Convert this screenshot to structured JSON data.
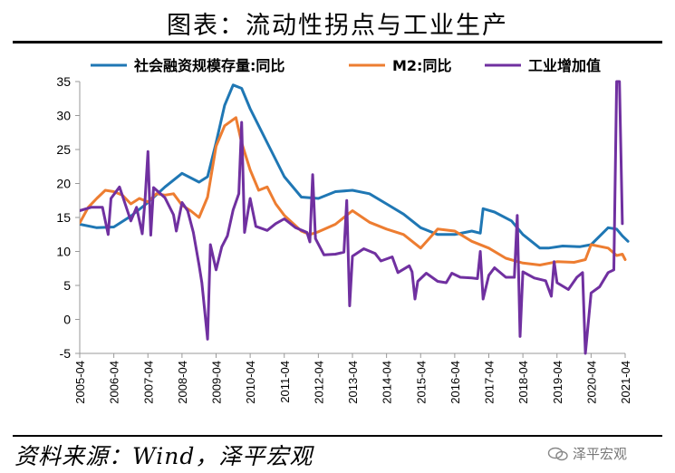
{
  "title": "图表：流动性拐点与工业生产",
  "source": "资料来源：Wind，泽平宏观",
  "watermark": "泽平宏观",
  "watermark_icon": "wechat-icon",
  "chart_data": {
    "type": "line",
    "title": "",
    "xlabel": "",
    "ylabel": "",
    "ylim": [
      -5,
      35
    ],
    "yticks": [
      -5,
      0,
      5,
      10,
      15,
      20,
      25,
      30,
      35
    ],
    "xlim": [
      "2005-04",
      "2021-04"
    ],
    "xticks": [
      "2005-04",
      "2006-04",
      "2007-04",
      "2008-04",
      "2009-04",
      "2010-04",
      "2011-04",
      "2012-04",
      "2013-04",
      "2014-04",
      "2015-04",
      "2016-04",
      "2017-04",
      "2018-04",
      "2019-04",
      "2020-04",
      "2021-04"
    ],
    "grid": false,
    "legend_position": "top",
    "series": [
      {
        "name": "社会融资规模存量:同比",
        "color": "#1f77b4",
        "points": [
          [
            "2005-04",
            14.0
          ],
          [
            "2005-10",
            13.5
          ],
          [
            "2006-04",
            13.6
          ],
          [
            "2006-10",
            15.2
          ],
          [
            "2007-04",
            17.2
          ],
          [
            "2007-10",
            19.5
          ],
          [
            "2008-04",
            21.5
          ],
          [
            "2008-10",
            20.2
          ],
          [
            "2009-01",
            21.0
          ],
          [
            "2009-04",
            26.0
          ],
          [
            "2009-07",
            31.5
          ],
          [
            "2009-10",
            34.5
          ],
          [
            "2010-01",
            34.0
          ],
          [
            "2010-04",
            31.0
          ],
          [
            "2010-10",
            26.0
          ],
          [
            "2011-04",
            21.0
          ],
          [
            "2011-10",
            18.0
          ],
          [
            "2012-04",
            17.8
          ],
          [
            "2012-10",
            18.8
          ],
          [
            "2013-04",
            19.0
          ],
          [
            "2013-10",
            18.5
          ],
          [
            "2014-04",
            17.0
          ],
          [
            "2014-10",
            15.5
          ],
          [
            "2015-04",
            13.5
          ],
          [
            "2015-10",
            12.5
          ],
          [
            "2016-04",
            12.5
          ],
          [
            "2016-10",
            13.0
          ],
          [
            "2017-01",
            12.7
          ],
          [
            "2017-02",
            16.3
          ],
          [
            "2017-06",
            15.8
          ],
          [
            "2017-12",
            14.5
          ],
          [
            "2018-04",
            12.5
          ],
          [
            "2018-10",
            10.5
          ],
          [
            "2019-01",
            10.5
          ],
          [
            "2019-06",
            10.8
          ],
          [
            "2019-12",
            10.7
          ],
          [
            "2020-04",
            11.0
          ],
          [
            "2020-10",
            13.5
          ],
          [
            "2021-01",
            13.3
          ],
          [
            "2021-03",
            12.3
          ],
          [
            "2021-05",
            11.5
          ]
        ]
      },
      {
        "name": "M2:同比",
        "color": "#ed7d31",
        "points": [
          [
            "2005-04",
            14.2
          ],
          [
            "2005-07",
            16.5
          ],
          [
            "2005-10",
            17.8
          ],
          [
            "2006-01",
            19.0
          ],
          [
            "2006-04",
            18.8
          ],
          [
            "2006-07",
            18.3
          ],
          [
            "2006-10",
            17.0
          ],
          [
            "2007-01",
            17.8
          ],
          [
            "2007-04",
            17.3
          ],
          [
            "2007-07",
            18.5
          ],
          [
            "2007-10",
            18.3
          ],
          [
            "2008-01",
            18.5
          ],
          [
            "2008-04",
            16.8
          ],
          [
            "2008-07",
            16.0
          ],
          [
            "2008-10",
            15.0
          ],
          [
            "2009-01",
            18.0
          ],
          [
            "2009-04",
            25.5
          ],
          [
            "2009-07",
            28.5
          ],
          [
            "2009-11",
            29.7
          ],
          [
            "2010-01",
            26.0
          ],
          [
            "2010-04",
            22.0
          ],
          [
            "2010-07",
            19.0
          ],
          [
            "2010-10",
            19.5
          ],
          [
            "2011-01",
            17.0
          ],
          [
            "2011-04",
            15.3
          ],
          [
            "2011-10",
            13.0
          ],
          [
            "2012-01",
            12.5
          ],
          [
            "2012-04",
            12.9
          ],
          [
            "2012-10",
            14.0
          ],
          [
            "2013-04",
            16.0
          ],
          [
            "2013-10",
            14.3
          ],
          [
            "2014-04",
            13.3
          ],
          [
            "2014-10",
            12.5
          ],
          [
            "2015-04",
            10.5
          ],
          [
            "2015-10",
            13.3
          ],
          [
            "2016-04",
            13.0
          ],
          [
            "2016-10",
            11.5
          ],
          [
            "2017-04",
            10.5
          ],
          [
            "2017-10",
            9.0
          ],
          [
            "2018-04",
            8.3
          ],
          [
            "2018-10",
            8.0
          ],
          [
            "2019-04",
            8.5
          ],
          [
            "2019-10",
            8.4
          ],
          [
            "2020-02",
            8.8
          ],
          [
            "2020-04",
            11.0
          ],
          [
            "2020-10",
            10.5
          ],
          [
            "2021-01",
            9.4
          ],
          [
            "2021-03",
            9.6
          ],
          [
            "2021-04",
            8.8
          ]
        ]
      },
      {
        "name": "工业增加值",
        "color": "#7030a0",
        "points": [
          [
            "2005-04",
            16.0
          ],
          [
            "2005-08",
            16.5
          ],
          [
            "2005-12",
            16.5
          ],
          [
            "2006-02",
            12.5
          ],
          [
            "2006-03",
            17.8
          ],
          [
            "2006-06",
            19.5
          ],
          [
            "2006-10",
            14.5
          ],
          [
            "2006-12",
            16.5
          ],
          [
            "2007-02",
            12.6
          ],
          [
            "2007-03",
            17.6
          ],
          [
            "2007-04",
            24.7
          ],
          [
            "2007-05",
            12.4
          ],
          [
            "2007-06",
            19.4
          ],
          [
            "2007-10",
            17.9
          ],
          [
            "2008-01",
            15.4
          ],
          [
            "2008-02",
            13.0
          ],
          [
            "2008-04",
            17.2
          ],
          [
            "2008-06",
            16.0
          ],
          [
            "2008-08",
            12.8
          ],
          [
            "2008-10",
            8.0
          ],
          [
            "2008-11",
            5.4
          ],
          [
            "2009-01",
            -2.9
          ],
          [
            "2009-02",
            11.0
          ],
          [
            "2009-04",
            7.3
          ],
          [
            "2009-06",
            10.7
          ],
          [
            "2009-08",
            12.3
          ],
          [
            "2009-10",
            16.1
          ],
          [
            "2009-12",
            18.5
          ],
          [
            "2010-01",
            29.0
          ],
          [
            "2010-02",
            12.8
          ],
          [
            "2010-04",
            17.8
          ],
          [
            "2010-06",
            13.7
          ],
          [
            "2010-10",
            13.1
          ],
          [
            "2011-01",
            14.1
          ],
          [
            "2011-04",
            14.8
          ],
          [
            "2011-08",
            13.5
          ],
          [
            "2011-12",
            12.8
          ],
          [
            "2012-01",
            11.4
          ],
          [
            "2012-02",
            21.3
          ],
          [
            "2012-03",
            11.9
          ],
          [
            "2012-06",
            9.5
          ],
          [
            "2012-10",
            9.6
          ],
          [
            "2013-01",
            9.9
          ],
          [
            "2013-02",
            17.5
          ],
          [
            "2013-03",
            2.0
          ],
          [
            "2013-04",
            9.3
          ],
          [
            "2013-08",
            10.4
          ],
          [
            "2013-12",
            9.7
          ],
          [
            "2014-02",
            8.6
          ],
          [
            "2014-06",
            9.2
          ],
          [
            "2014-08",
            6.9
          ],
          [
            "2014-12",
            7.9
          ],
          [
            "2015-01",
            7.0
          ],
          [
            "2015-02",
            3.0
          ],
          [
            "2015-03",
            5.6
          ],
          [
            "2015-06",
            6.8
          ],
          [
            "2015-10",
            5.6
          ],
          [
            "2016-01",
            5.4
          ],
          [
            "2016-03",
            6.8
          ],
          [
            "2016-06",
            6.2
          ],
          [
            "2016-10",
            6.1
          ],
          [
            "2016-12",
            6.0
          ],
          [
            "2017-01",
            10.0
          ],
          [
            "2017-02",
            3.0
          ],
          [
            "2017-04",
            6.5
          ],
          [
            "2017-06",
            7.6
          ],
          [
            "2017-10",
            6.2
          ],
          [
            "2018-01",
            6.2
          ],
          [
            "2018-02",
            15.3
          ],
          [
            "2018-03",
            -2.5
          ],
          [
            "2018-04",
            7.0
          ],
          [
            "2018-08",
            6.1
          ],
          [
            "2018-12",
            5.7
          ],
          [
            "2019-02",
            3.4
          ],
          [
            "2019-03",
            8.5
          ],
          [
            "2019-04",
            5.4
          ],
          [
            "2019-08",
            4.4
          ],
          [
            "2019-11",
            6.2
          ],
          [
            "2020-01",
            6.9
          ],
          [
            "2020-02",
            -5.0
          ],
          [
            "2020-04",
            3.9
          ],
          [
            "2020-07",
            4.8
          ],
          [
            "2020-10",
            6.9
          ],
          [
            "2020-12",
            7.3
          ],
          [
            "2021-01",
            35.0
          ],
          [
            "2021-02",
            35.0
          ],
          [
            "2021-03",
            14.1
          ]
        ]
      }
    ]
  }
}
